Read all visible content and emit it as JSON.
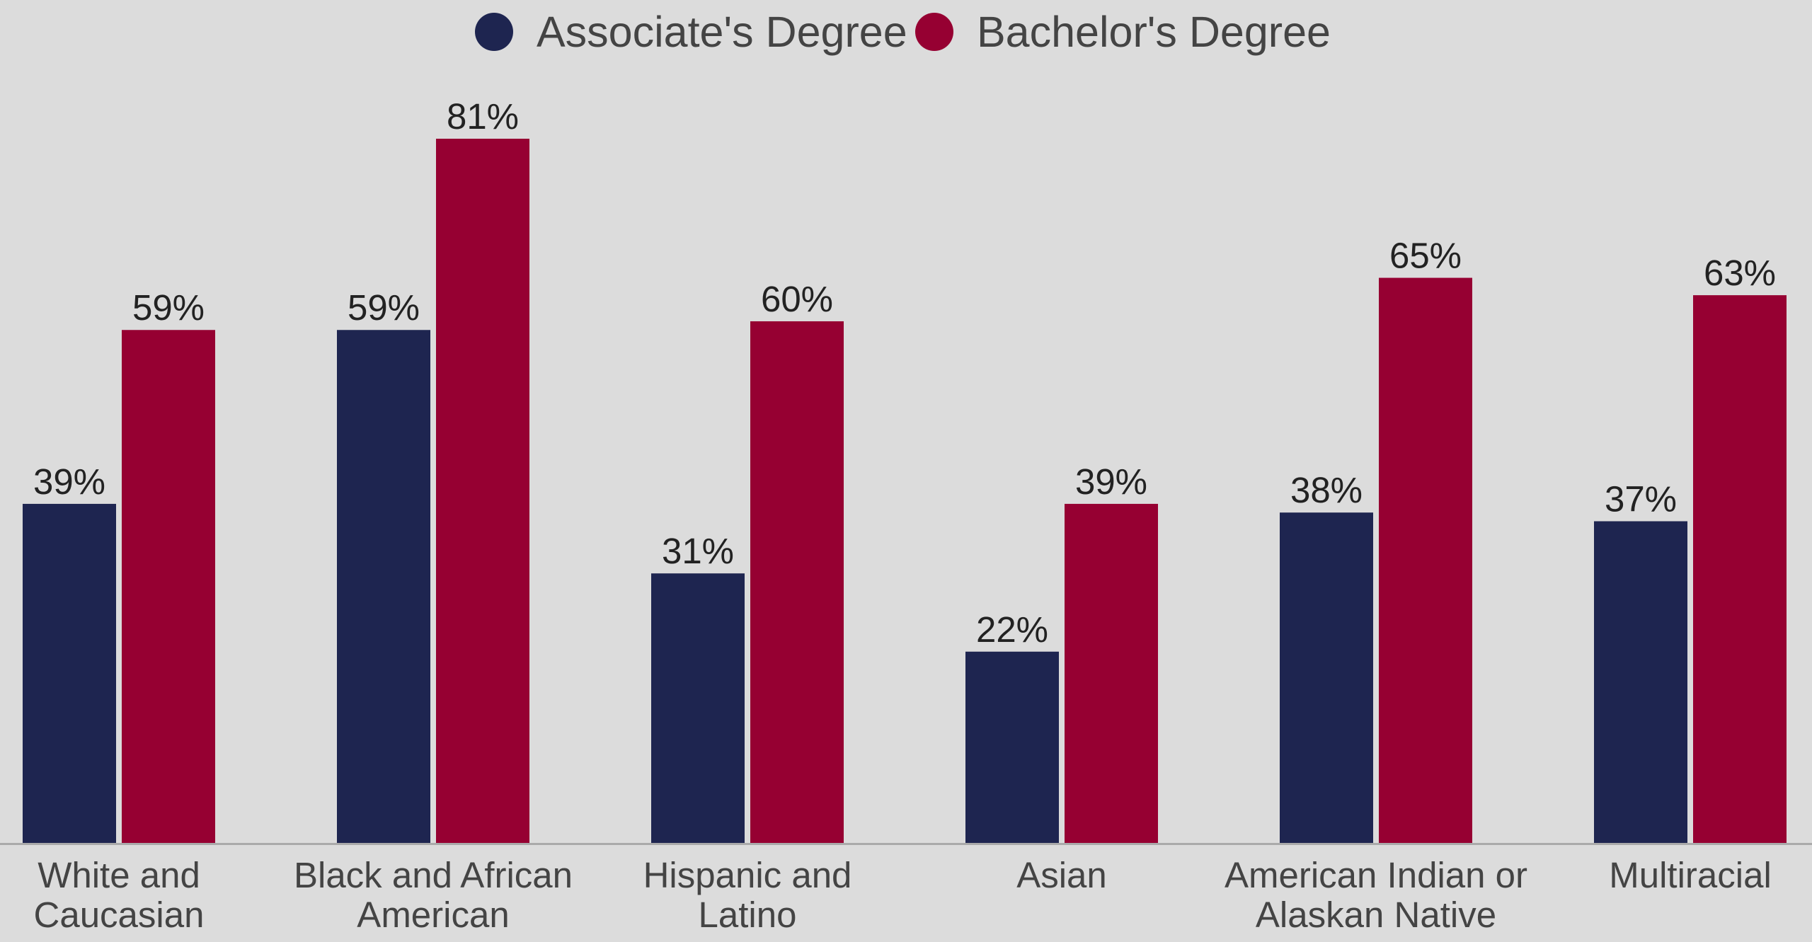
{
  "chart_data": {
    "type": "bar",
    "title": "",
    "xlabel": "",
    "ylabel": "",
    "ylim": [
      0,
      81
    ],
    "grid": false,
    "legend_position": "top-center",
    "categories": [
      [
        "White and",
        "Caucasian"
      ],
      [
        "Black and African",
        "American"
      ],
      [
        "Hispanic and",
        "Latino"
      ],
      [
        "Asian"
      ],
      [
        "American Indian or",
        "Alaskan Native"
      ],
      [
        "Multiracial"
      ]
    ],
    "series": [
      {
        "name": "Associate's Degree",
        "color": "#1e2550",
        "values": [
          39,
          59,
          31,
          22,
          38,
          37
        ],
        "labels": [
          "39%",
          "59%",
          "31%",
          "22%",
          "38%",
          "37%"
        ]
      },
      {
        "name": "Bachelor's Degree",
        "color": "#960032",
        "values": [
          59,
          81,
          60,
          39,
          65,
          63
        ],
        "labels": [
          "59%",
          "81%",
          "60%",
          "39%",
          "65%",
          "63%"
        ]
      }
    ]
  }
}
